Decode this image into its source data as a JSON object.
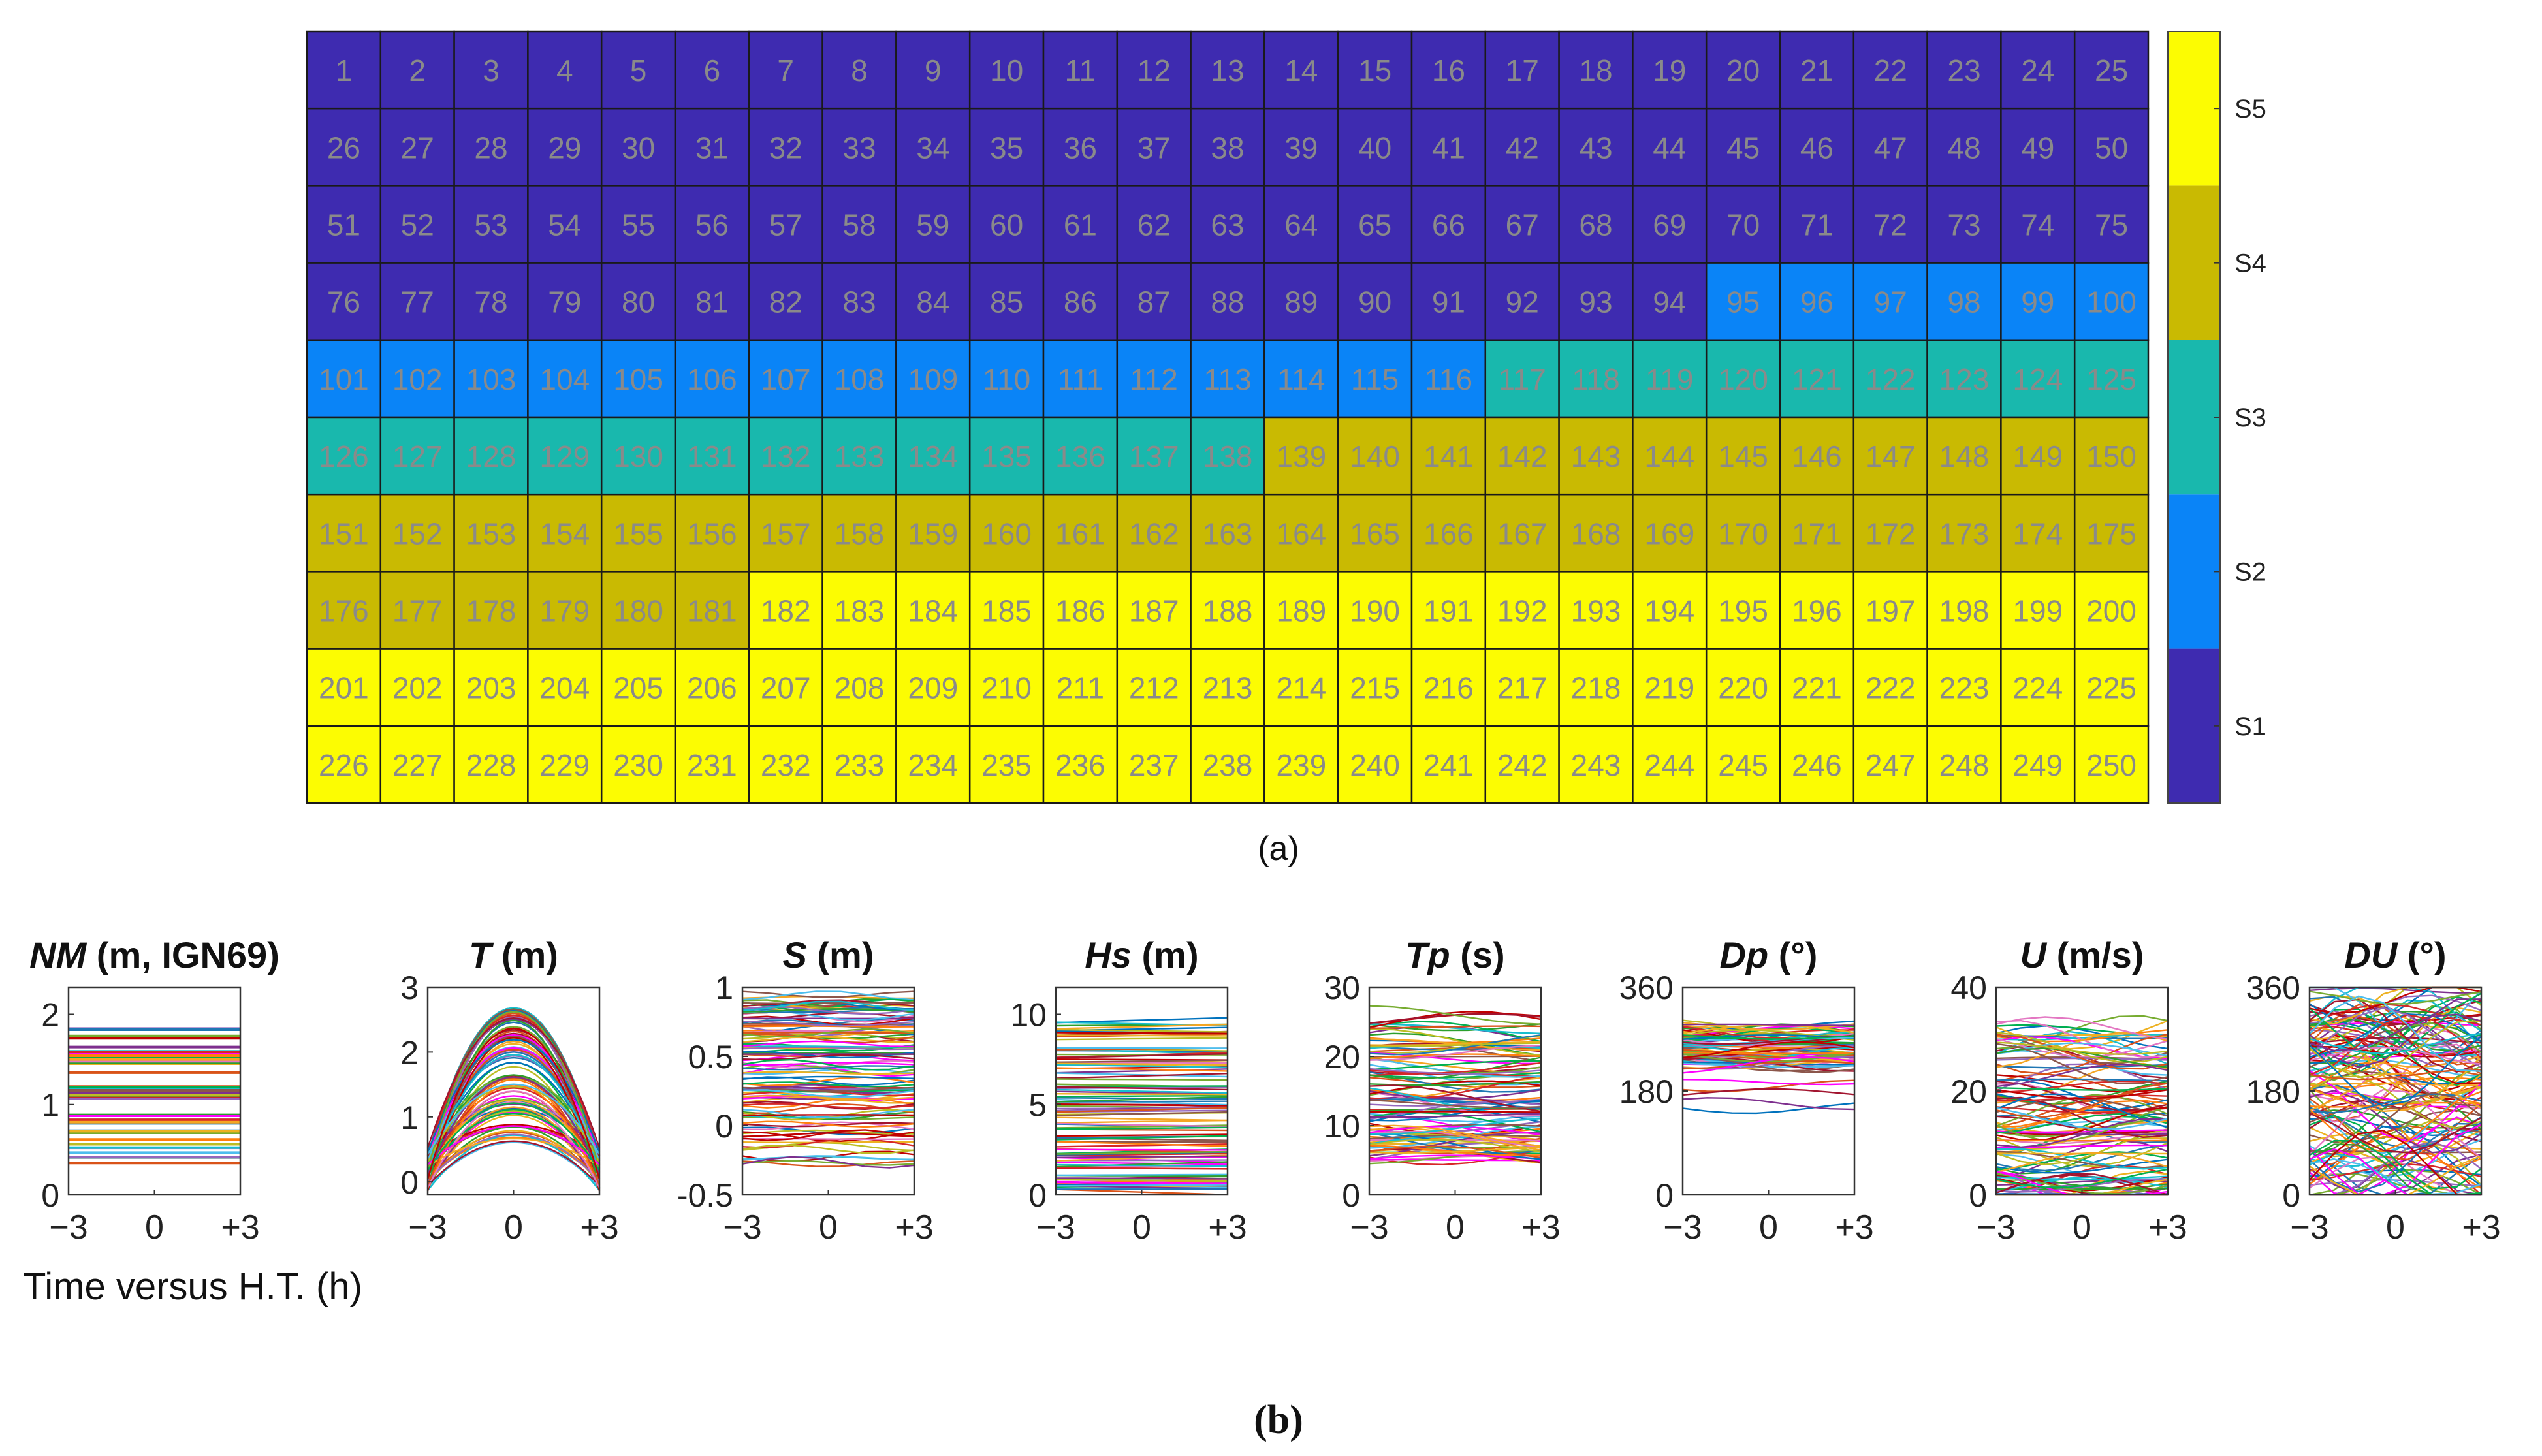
{
  "panel_a": {
    "caption": "(a)",
    "legend": {
      "labels": [
        "S1",
        "S2",
        "S3",
        "S4",
        "S5"
      ]
    },
    "cell_count_label_note": "",
    "colors": {
      "S1": "#3e2bb0",
      "S2": "#0a84f7",
      "S3": "#19b8ad",
      "S4": "#c9ba02",
      "S5": "#fcfc02",
      "cell_text": "#8a8a8a",
      "grid": "#1a1a1a"
    }
  },
  "panel_b": {
    "caption": "(b)",
    "x_axis_label": "Time versus H.T. (h)",
    "titles": [
      {
        "bold": "NM",
        "rest": " (m, IGN69)"
      },
      {
        "bold": "T",
        "rest": " (m)"
      },
      {
        "bold": "S",
        "rest": " (m)"
      },
      {
        "bold": "Hs",
        "rest": " (m)"
      },
      {
        "bold": "Tp",
        "rest": " (s)"
      },
      {
        "bold": "Dp",
        "rest": " (°)"
      },
      {
        "bold": "U",
        "rest": " (m/s)"
      },
      {
        "bold": "DU",
        "rest": " (°)"
      }
    ],
    "x_ticks": [
      "−3",
      "0",
      "+3"
    ],
    "y_ticks": [
      [
        "0",
        "1",
        "2"
      ],
      [
        "0",
        "1",
        "2",
        "3"
      ],
      [
        "-0.5",
        "0",
        "0.5",
        "1"
      ],
      [
        "0",
        "5",
        "10"
      ],
      [
        "0",
        "10",
        "20",
        "30"
      ],
      [
        "0",
        "180",
        "360"
      ],
      [
        "0",
        "20",
        "40"
      ],
      [
        "0",
        "180",
        "360"
      ]
    ]
  },
  "chart_data": [
    {
      "type": "heatmap",
      "title": "",
      "description_rows": 10,
      "columns": 25,
      "cells": "numbered 1-250, row-major",
      "class_boundaries_last_cell": {
        "S1": 94,
        "S2": 116,
        "S3": 138,
        "S4": 181,
        "S5": 250
      },
      "legend": [
        "S1",
        "S2",
        "S3",
        "S4",
        "S5"
      ]
    },
    {
      "type": "line",
      "title": "NM (m, IGN69)",
      "x": [
        -3,
        0,
        3
      ],
      "xlim": [
        -3,
        3
      ],
      "ylim": [
        0,
        2.3
      ],
      "series_summary": "constant lines between about 0.35 and 2.0"
    },
    {
      "type": "line",
      "title": "T (m)",
      "x": [
        -3,
        0,
        3
      ],
      "xlim": [
        -3,
        3
      ],
      "ylim": [
        -0.2,
        3
      ],
      "series_summary": "parabolic curves peaking near 0 h, peaks between about 0.6 and 2.7"
    },
    {
      "type": "line",
      "title": "S (m)",
      "x": [
        -3,
        0,
        3
      ],
      "xlim": [
        -3,
        3
      ],
      "ylim": [
        -0.5,
        1
      ],
      "series_summary": "near-flat lines between about -0.3 and 0.95"
    },
    {
      "type": "line",
      "title": "Hs (m)",
      "x": [
        -3,
        0,
        3
      ],
      "xlim": [
        -3,
        3
      ],
      "ylim": [
        0,
        11.5
      ],
      "series_summary": "near-flat lines between about 0.3 and 10.2"
    },
    {
      "type": "line",
      "title": "Tp (s)",
      "x": [
        -3,
        0,
        3
      ],
      "xlim": [
        -3,
        3
      ],
      "ylim": [
        0,
        30
      ],
      "series_summary": "lines between about 4 and 27"
    },
    {
      "type": "line",
      "title": "Dp (°)",
      "x": [
        -3,
        0,
        3
      ],
      "xlim": [
        -3,
        3
      ],
      "ylim": [
        0,
        360
      ],
      "series_summary": "lines concentrated between about 150 and 360, mostly 220-300"
    },
    {
      "type": "line",
      "title": "U (m/s)",
      "x": [
        -3,
        0,
        3
      ],
      "xlim": [
        -3,
        3
      ],
      "ylim": [
        0,
        40
      ],
      "series_summary": "lines between about 0 and 34"
    },
    {
      "type": "line",
      "title": "DU (°)",
      "x": [
        -3,
        0,
        3
      ],
      "xlim": [
        -3,
        3
      ],
      "ylim": [
        0,
        360
      ],
      "series_summary": "lines spread over 0-360"
    }
  ]
}
